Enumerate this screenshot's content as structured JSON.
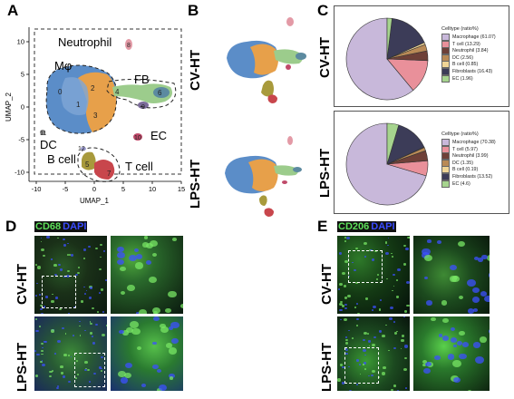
{
  "panel_a": {
    "letter": "A",
    "xlabel": "UMAP_1",
    "ylabel": "UMAP_2",
    "xticks": [
      "-10",
      "-5",
      "0",
      "5",
      "10",
      "15"
    ],
    "yticks": [
      "-10",
      "-5",
      "0",
      "5",
      "10"
    ],
    "labels": {
      "neutrophil": "Neutrophil",
      "mphi": "Mφ",
      "fb": "FB",
      "dc": "DC",
      "ec": "EC",
      "bcell": "B cell",
      "tcell": "T cell"
    },
    "cluster_numbers": [
      "0",
      "1",
      "2",
      "3",
      "4",
      "5",
      "6",
      "7",
      "8",
      "9",
      "10",
      "11",
      "12"
    ]
  },
  "panel_b": {
    "letter": "B",
    "row1": "CV-HT",
    "row2": "LPS-HT"
  },
  "panel_c": {
    "letter": "C",
    "row1": "CV-HT",
    "row2": "LPS-HT",
    "legend_title": "Celltype (ratio%)"
  },
  "chart_data": [
    {
      "type": "pie",
      "title": "CV-HT",
      "legend_title": "Celltype (ratio%)",
      "categories": [
        "Macrophage",
        "T cell",
        "Neutrophil",
        "DC",
        "B cell",
        "Fibroblasts",
        "EC"
      ],
      "values": [
        61.07,
        13.29,
        3.84,
        2.56,
        0.85,
        16.43,
        1.96
      ],
      "legend_labels": [
        "Macrophage (61.07)",
        "T cell (13.29)",
        "Neutrophil (3.84)",
        "DC (2.56)",
        "B cell (0.85)",
        "Fibroblasts (16.43)",
        "EC (1.96)"
      ],
      "colors": [
        "#c8b8da",
        "#e9909a",
        "#6e4038",
        "#b98a56",
        "#f0d596",
        "#3c3c58",
        "#a6d48e"
      ],
      "legend_position": "right"
    },
    {
      "type": "pie",
      "title": "LPS-HT",
      "legend_title": "Celltype (ratio%)",
      "categories": [
        "Macrophage",
        "T cell",
        "Neutrophil",
        "DC",
        "B cell",
        "Fibroblasts",
        "EC"
      ],
      "values": [
        70.38,
        5.97,
        3.99,
        1.35,
        0.19,
        13.52,
        4.6
      ],
      "legend_labels": [
        "Macrophage (70.38)",
        "T cell (5.97)",
        "Neutrophil (3.99)",
        "DC (1.35)",
        "B cell (0.19)",
        "Fibroblasts (13.52)",
        "EC (4.6)"
      ],
      "colors": [
        "#c8b8da",
        "#e9909a",
        "#6e4038",
        "#b98a56",
        "#f0d596",
        "#3c3c58",
        "#a6d48e"
      ],
      "legend_position": "right"
    }
  ],
  "panel_d": {
    "letter": "D",
    "stain": "CD68",
    "counterstain": "DAPI",
    "row1": "CV-HT",
    "row2": "LPS-HT"
  },
  "panel_e": {
    "letter": "E",
    "stain": "CD206",
    "counterstain": "DAPI",
    "row1": "CV-HT",
    "row2": "LPS-HT"
  },
  "colors": {
    "macrophage_blue": "#5b8dc8",
    "macrophage_orange": "#e7a04a",
    "fibroblast_green": "#9ccc8c",
    "bcell_olive": "#a89a3c",
    "tcell_red": "#c8464c",
    "neutrophil_pink": "#e39aa6",
    "stain_green": "#5de05a",
    "dapi_blue": "#3a4cff"
  }
}
